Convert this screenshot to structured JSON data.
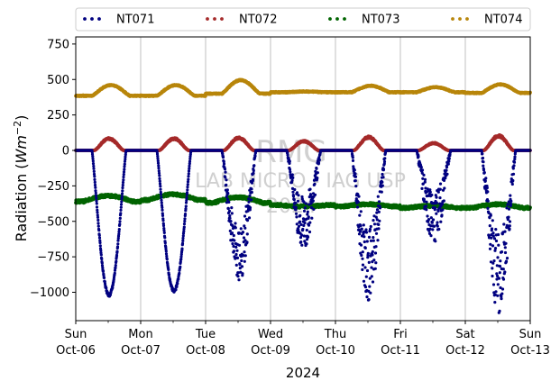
{
  "chart_data": {
    "type": "scatter",
    "ylabel": "Radiation",
    "ylabel_unit_base": "Wm",
    "ylabel_unit_exp": "−2",
    "xlabel": "2024",
    "ylim": [
      -1200,
      800
    ],
    "yticks": [
      -1000,
      -750,
      -500,
      -250,
      0,
      250,
      500,
      750
    ],
    "xlim": [
      "2024-10-06",
      "2024-10-13"
    ],
    "xticks": [
      {
        "date": "2024-10-06",
        "day": "Sun",
        "label": "Oct-06"
      },
      {
        "date": "2024-10-07",
        "day": "Mon",
        "label": "Oct-07"
      },
      {
        "date": "2024-10-08",
        "day": "Tue",
        "label": "Oct-08"
      },
      {
        "date": "2024-10-09",
        "day": "Wed",
        "label": "Oct-09"
      },
      {
        "date": "2024-10-10",
        "day": "Thu",
        "label": "Oct-10"
      },
      {
        "date": "2024-10-11",
        "day": "Fri",
        "label": "Oct-11"
      },
      {
        "date": "2024-10-12",
        "day": "Sat",
        "label": "Oct-12"
      },
      {
        "date": "2024-10-13",
        "day": "Sun",
        "label": "Oct-13"
      }
    ],
    "grid": "x-major",
    "legend_position": "top",
    "watermark": [
      "RMG",
      "LAB MICRO - IAG USP",
      "2024"
    ],
    "series": [
      {
        "name": "NT071",
        "color": "#000080",
        "baseline": 0,
        "daily_min": [
          -1030,
          -1000,
          -940,
          -720,
          -1060,
          -660,
          -1150
        ],
        "daily_variation": [
          0.05,
          0.05,
          0.45,
          0.55,
          0.5,
          0.55,
          0.5
        ]
      },
      {
        "name": "NT072",
        "color": "#a52a2a",
        "baseline": 0,
        "daily_peak": [
          90,
          90,
          95,
          70,
          100,
          55,
          110
        ]
      },
      {
        "name": "NT073",
        "color": "#006400",
        "baseline": -360,
        "daily_baseline": [
          -360,
          -350,
          -370,
          -385,
          -395,
          -405,
          -405
        ],
        "daily_peak": [
          -320,
          -310,
          -330,
          -395,
          -380,
          -390,
          -380
        ]
      },
      {
        "name": "NT074",
        "color": "#b8860b",
        "baseline": 385,
        "daily_baseline": [
          385,
          385,
          400,
          410,
          410,
          410,
          405
        ],
        "daily_peak": [
          460,
          460,
          495,
          415,
          455,
          445,
          465
        ]
      }
    ]
  }
}
